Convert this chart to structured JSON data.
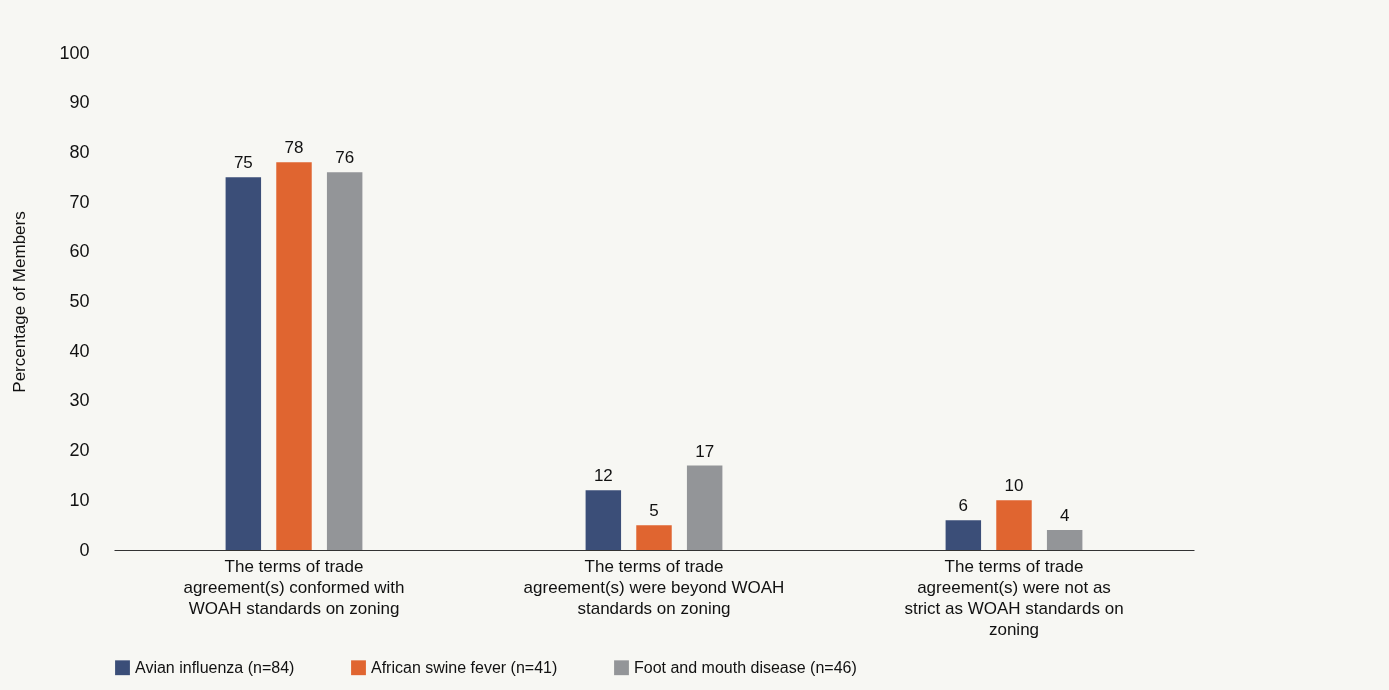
{
  "chart_data": {
    "type": "bar",
    "ylabel": "Percentage of Members",
    "categories": [
      "The terms of trade agreement(s) conformed with WOAH standards on zoning",
      "The terms of trade agreement(s) were beyond WOAH standards on zoning",
      "The terms of trade agreement(s) were not as strict as WOAH standards on zoning"
    ],
    "series": [
      {
        "name": "Avian influenza (n=84)",
        "color": "#3b4e78",
        "values": [
          75,
          12,
          6
        ]
      },
      {
        "name": "African swine fever (n=41)",
        "color": "#e06530",
        "values": [
          78,
          5,
          10
        ]
      },
      {
        "name": "Foot and mouth disease (n=46)",
        "color": "#939598",
        "values": [
          76,
          17,
          4
        ]
      }
    ],
    "ylim": [
      0,
      100
    ],
    "yticks": [
      0,
      10,
      20,
      30,
      40,
      50,
      60,
      70,
      80,
      90,
      100
    ],
    "grid": false,
    "legend": "bottom",
    "data_labels": true
  }
}
